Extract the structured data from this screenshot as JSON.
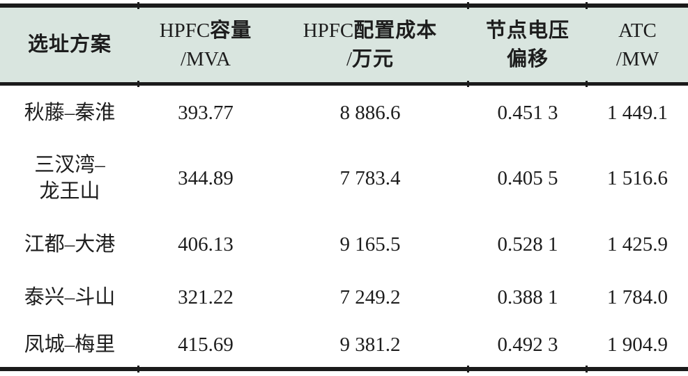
{
  "colors": {
    "header_bg": "#d9e5df",
    "rule": "#1b1b1b",
    "text": "#1d1d1d"
  },
  "table": {
    "columns": [
      {
        "id": "scheme",
        "line1": "选址方案",
        "line2": ""
      },
      {
        "id": "capacity",
        "line1": "HPFC容量",
        "line2": "/MVA"
      },
      {
        "id": "cost",
        "line1": "HPFC配置成本",
        "line2": "/万元"
      },
      {
        "id": "voltage",
        "line1": "节点电压",
        "line2": "偏移"
      },
      {
        "id": "atc",
        "line1": "ATC",
        "line2": "/MW"
      }
    ],
    "rows": [
      {
        "scheme_lines": [
          "秋藤–秦淮"
        ],
        "capacity": "393.77",
        "cost": "8 886.6",
        "voltage": "0.451 3",
        "atc": "1 449.1"
      },
      {
        "scheme_lines": [
          "三汊湾–",
          "龙王山"
        ],
        "capacity": "344.89",
        "cost": "7 783.4",
        "voltage": "0.405 5",
        "atc": "1 516.6"
      },
      {
        "scheme_lines": [
          "江都–大港"
        ],
        "capacity": "406.13",
        "cost": "9 165.5",
        "voltage": "0.528 1",
        "atc": "1 425.9"
      },
      {
        "scheme_lines": [
          "泰兴–斗山"
        ],
        "capacity": "321.22",
        "cost": "7 249.2",
        "voltage": "0.388 1",
        "atc": "1 784.0"
      },
      {
        "scheme_lines": [
          "凤城–梅里"
        ],
        "capacity": "415.69",
        "cost": "9 381.2",
        "voltage": "0.492 3",
        "atc": "1 904.9"
      }
    ]
  }
}
